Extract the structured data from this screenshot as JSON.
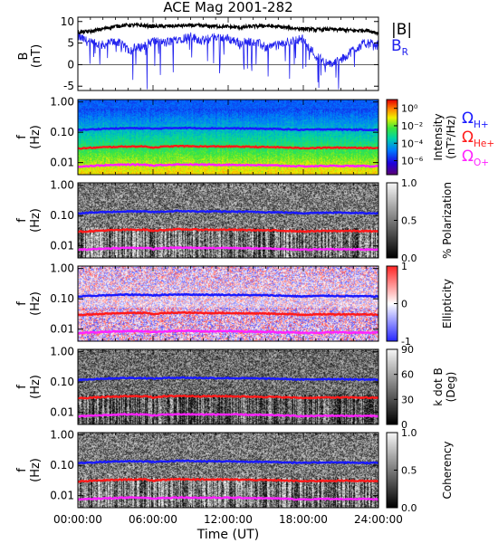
{
  "title": "ACE Mag 2001-282",
  "xlabel": "Time (UT)",
  "x_ticks": [
    "00:00:00",
    "06:00:00",
    "12:00:00",
    "18:00:00",
    "24:00:00"
  ],
  "colors": {
    "B_total": "#000000",
    "B_R": "#2222ee",
    "H_plus": "#1a1aff",
    "He_plus": "#ff1a1a",
    "O_plus": "#ff22ff"
  },
  "chart_data": [
    {
      "type": "line",
      "ylabel": "B",
      "yunit": "(nT)",
      "ylim": [
        -6,
        11
      ],
      "y_ticks": [
        "10",
        "5",
        "0",
        "-5"
      ],
      "y_tick_values": [
        10,
        5,
        0,
        -5
      ],
      "x_range_hours": [
        0,
        24
      ],
      "legend": [
        {
          "name": "|B|",
          "sub": ""
        },
        {
          "name": "B",
          "sub": "R"
        }
      ],
      "series": [
        {
          "name": "|B|",
          "x_hours": [
            0,
            1,
            2,
            3,
            4,
            5,
            6,
            7,
            8,
            9,
            10,
            11,
            12,
            13,
            14,
            15,
            16,
            17,
            18,
            19,
            20,
            21,
            22,
            23,
            24
          ],
          "values": [
            7.5,
            7.7,
            8.3,
            8.9,
            9.2,
            9.1,
            8.9,
            8.9,
            9.0,
            9.1,
            9.0,
            8.9,
            8.8,
            8.6,
            8.9,
            9.0,
            8.8,
            8.5,
            8.3,
            8.1,
            8.2,
            8.1,
            7.9,
            8.0,
            7.3
          ]
        },
        {
          "name": "B_R",
          "x_hours": [
            0,
            1,
            2,
            3,
            4,
            5,
            6,
            7,
            8,
            9,
            10,
            11,
            12,
            13,
            14,
            15,
            16,
            17,
            18,
            19,
            20,
            21,
            22,
            23,
            24
          ],
          "values": [
            6.5,
            5.0,
            4.5,
            5.5,
            3.5,
            4.0,
            5.5,
            5.0,
            6.0,
            6.5,
            5.5,
            6.5,
            6.0,
            5.0,
            5.5,
            4.0,
            4.5,
            5.5,
            6.0,
            2.0,
            0.0,
            1.0,
            3.5,
            5.0,
            4.5
          ]
        }
      ]
    },
    {
      "type": "heatmap",
      "ylabel": "f",
      "yunit": "(Hz)",
      "y_scale": "log",
      "ylim": [
        0.004,
        1.2
      ],
      "y_ticks": [
        "1.00",
        "0.10",
        "0.01"
      ],
      "y_tick_values": [
        1,
        0.1,
        0.01
      ],
      "colorbar_label": "Intensity",
      "colorbar_unit": "(nT²/Hz)",
      "colorbar_scale": "log",
      "colorbar_ticks": [
        "10⁰",
        "10⁻²",
        "10⁻⁴",
        "10⁻⁶"
      ],
      "colorbar_range": [
        3e-07,
        3
      ],
      "colormap": "rainbow",
      "legend": [
        {
          "name": "Ω",
          "sub": "H+"
        },
        {
          "name": "Ω",
          "sub": "He+"
        },
        {
          "name": "Ω",
          "sub": "O+"
        }
      ]
    },
    {
      "type": "heatmap",
      "ylabel": "f",
      "yunit": "(Hz)",
      "y_scale": "log",
      "ylim": [
        0.004,
        1.2
      ],
      "y_ticks": [
        "1.00",
        "0.10",
        "0.01"
      ],
      "y_tick_values": [
        1,
        0.1,
        0.01
      ],
      "colorbar_label": "% Polarization",
      "colorbar_ticks": [
        "1.0",
        "0.5",
        "0.0"
      ],
      "colorbar_tick_values": [
        1.0,
        0.5,
        0.0
      ],
      "colorbar_range": [
        0,
        1
      ],
      "colormap": "gray"
    },
    {
      "type": "heatmap",
      "ylabel": "f",
      "yunit": "(Hz)",
      "y_scale": "log",
      "ylim": [
        0.004,
        1.2
      ],
      "y_ticks": [
        "1.00",
        "0.10",
        "0.01"
      ],
      "y_tick_values": [
        1,
        0.1,
        0.01
      ],
      "colorbar_label": "Ellipticity",
      "colorbar_ticks": [
        "1",
        "0",
        "-1"
      ],
      "colorbar_tick_values": [
        1,
        0,
        -1
      ],
      "colorbar_range": [
        -1,
        1
      ],
      "colormap": "blue-white-red"
    },
    {
      "type": "heatmap",
      "ylabel": "f",
      "yunit": "(Hz)",
      "y_scale": "log",
      "ylim": [
        0.004,
        1.2
      ],
      "y_ticks": [
        "1.00",
        "0.10",
        "0.01"
      ],
      "y_tick_values": [
        1,
        0.1,
        0.01
      ],
      "colorbar_label": "k dot B",
      "colorbar_unit": "(Deg)",
      "colorbar_ticks": [
        "90",
        "60",
        "30",
        "0"
      ],
      "colorbar_tick_values": [
        90,
        60,
        30,
        0
      ],
      "colorbar_range": [
        0,
        90
      ],
      "colormap": "gray"
    },
    {
      "type": "heatmap",
      "ylabel": "f",
      "yunit": "(Hz)",
      "y_scale": "log",
      "ylim": [
        0.004,
        1.2
      ],
      "y_ticks": [
        "1.00",
        "0.10",
        "0.01"
      ],
      "y_tick_values": [
        1,
        0.1,
        0.01
      ],
      "colorbar_label": "Coherency",
      "colorbar_ticks": [
        "1.0",
        "0.5",
        "0.0"
      ],
      "colorbar_tick_values": [
        1.0,
        0.5,
        0.0
      ],
      "colorbar_range": [
        0,
        1
      ],
      "colormap": "gray"
    }
  ],
  "gyrofrequency_lines": [
    {
      "name": "H+",
      "color": "#1a1aff",
      "x_hours": [
        0,
        2,
        4,
        5.5,
        6,
        6.5,
        8,
        10,
        12,
        14,
        16,
        18,
        20,
        22,
        24
      ],
      "values": [
        0.118,
        0.13,
        0.137,
        0.135,
        0.13,
        0.133,
        0.14,
        0.136,
        0.135,
        0.132,
        0.128,
        0.12,
        0.126,
        0.122,
        0.12
      ]
    },
    {
      "name": "He+",
      "color": "#ff1a1a",
      "x_hours": [
        0,
        2,
        4,
        5.5,
        6,
        6.5,
        8,
        10,
        12,
        14,
        16,
        18,
        20,
        22,
        24
      ],
      "values": [
        0.029,
        0.032,
        0.034,
        0.034,
        0.031,
        0.033,
        0.035,
        0.034,
        0.034,
        0.033,
        0.032,
        0.03,
        0.031,
        0.031,
        0.03
      ]
    },
    {
      "name": "O+",
      "color": "#ff22ff",
      "x_hours": [
        0,
        2,
        4,
        5.5,
        6,
        6.5,
        8,
        10,
        12,
        14,
        16,
        18,
        20,
        22,
        24
      ],
      "values": [
        0.0074,
        0.0081,
        0.0086,
        0.0085,
        0.0079,
        0.0083,
        0.0087,
        0.0085,
        0.0085,
        0.0083,
        0.008,
        0.0075,
        0.0078,
        0.0077,
        0.0076
      ]
    }
  ]
}
